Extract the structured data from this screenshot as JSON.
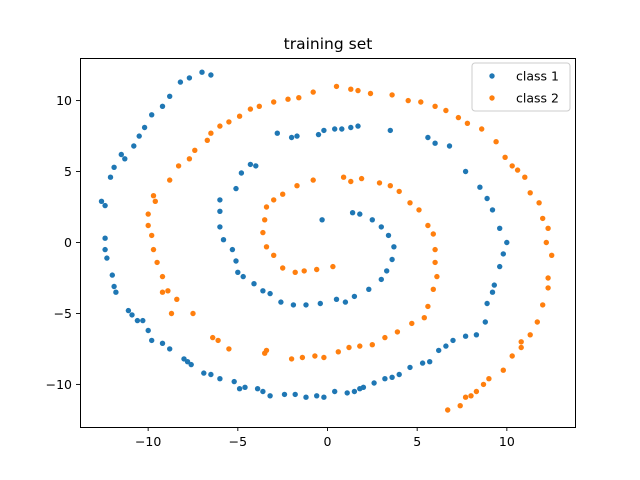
{
  "chart_data": {
    "type": "scatter",
    "title": "training set",
    "xlabel": "",
    "ylabel": "",
    "xlim": [
      -13.8,
      13.8
    ],
    "ylim": [
      -13,
      13
    ],
    "x_ticks": [
      -10,
      -5,
      0,
      5,
      10
    ],
    "y_ticks": [
      -10,
      -5,
      0,
      5,
      10
    ],
    "x_tick_labels": [
      "−10",
      "−5",
      "0",
      "5",
      "10"
    ],
    "y_tick_labels": [
      "−10",
      "−5",
      "0",
      "5",
      "10"
    ],
    "grid": false,
    "legend_position": "top-right",
    "series": [
      {
        "name": "class 1",
        "color": "#1f77b4",
        "points": [
          [
            -0.3,
            1.6
          ],
          [
            1.4,
            2.1
          ],
          [
            1.8,
            2.0
          ],
          [
            2.5,
            1.6
          ],
          [
            3.0,
            1.1
          ],
          [
            3.4,
            0.5
          ],
          [
            3.7,
            -0.3
          ],
          [
            3.6,
            -1.2
          ],
          [
            3.3,
            -2.0
          ],
          [
            3.0,
            -2.6
          ],
          [
            2.3,
            -3.3
          ],
          [
            1.5,
            -3.8
          ],
          [
            1.0,
            -4.2
          ],
          [
            0.5,
            -4.0
          ],
          [
            -0.4,
            -4.3
          ],
          [
            -1.2,
            -4.4
          ],
          [
            -1.9,
            -4.4
          ],
          [
            -2.6,
            -4.2
          ],
          [
            -3.2,
            -3.6
          ],
          [
            -3.6,
            -3.4
          ],
          [
            -4.1,
            -2.9
          ],
          [
            -4.7,
            -2.4
          ],
          [
            -5.0,
            -2.1
          ],
          [
            -5.1,
            -1.3
          ],
          [
            -5.3,
            -0.5
          ],
          [
            -5.8,
            0.2
          ],
          [
            -6.0,
            1.1
          ],
          [
            -6.0,
            2.2
          ],
          [
            -6.0,
            3.0
          ],
          [
            -5.1,
            3.8
          ],
          [
            -4.8,
            4.9
          ],
          [
            -4.3,
            5.5
          ],
          [
            -4.0,
            5.4
          ],
          [
            -2.8,
            7.7
          ],
          [
            -2.0,
            7.4
          ],
          [
            -1.7,
            7.5
          ],
          [
            -0.5,
            7.6
          ],
          [
            -0.2,
            7.9
          ],
          [
            0.4,
            8.0
          ],
          [
            0.8,
            8.0
          ],
          [
            1.3,
            8.1
          ],
          [
            1.7,
            8.2
          ],
          [
            3.5,
            7.9
          ],
          [
            5.6,
            7.4
          ],
          [
            6.0,
            7.0
          ],
          [
            6.8,
            6.8
          ],
          [
            7.7,
            5.0
          ],
          [
            8.5,
            3.9
          ],
          [
            8.9,
            3.1
          ],
          [
            9.2,
            2.3
          ],
          [
            9.6,
            1.0
          ],
          [
            10.0,
            0.0
          ],
          [
            9.8,
            -0.8
          ],
          [
            9.6,
            -1.7
          ],
          [
            9.3,
            -3.0
          ],
          [
            9.2,
            -3.5
          ],
          [
            8.9,
            -4.3
          ],
          [
            8.8,
            -5.6
          ],
          [
            8.3,
            -6.5
          ],
          [
            7.7,
            -6.6
          ],
          [
            7.0,
            -6.9
          ],
          [
            6.6,
            -7.3
          ],
          [
            6.2,
            -7.6
          ],
          [
            5.7,
            -8.4
          ],
          [
            5.3,
            -8.5
          ],
          [
            4.6,
            -8.8
          ],
          [
            4.0,
            -9.3
          ],
          [
            3.6,
            -9.5
          ],
          [
            3.2,
            -9.6
          ],
          [
            2.6,
            -9.9
          ],
          [
            2.0,
            -10.2
          ],
          [
            1.8,
            -10.3
          ],
          [
            1.5,
            -10.5
          ],
          [
            1.1,
            -10.6
          ],
          [
            0.4,
            -10.5
          ],
          [
            -0.2,
            -10.9
          ],
          [
            -0.6,
            -10.8
          ],
          [
            -1.2,
            -10.9
          ],
          [
            -1.8,
            -10.7
          ],
          [
            -2.4,
            -10.7
          ],
          [
            -3.2,
            -10.8
          ],
          [
            -3.6,
            -10.5
          ],
          [
            -3.9,
            -10.3
          ],
          [
            -4.6,
            -10.2
          ],
          [
            -4.9,
            -10.3
          ],
          [
            -5.2,
            -9.8
          ],
          [
            -6.0,
            -9.6
          ],
          [
            -6.5,
            -9.3
          ],
          [
            -6.9,
            -9.2
          ],
          [
            -7.6,
            -8.6
          ],
          [
            -7.8,
            -8.4
          ],
          [
            -8.0,
            -8.2
          ],
          [
            -8.8,
            -7.5
          ],
          [
            -9.2,
            -7.1
          ],
          [
            -9.8,
            -6.9
          ],
          [
            -10.0,
            -6.2
          ],
          [
            -10.3,
            -5.5
          ],
          [
            -10.6,
            -5.5
          ],
          [
            -10.9,
            -5.1
          ],
          [
            -11.1,
            -4.8
          ],
          [
            -11.8,
            -3.5
          ],
          [
            -11.9,
            -3.1
          ],
          [
            -12.0,
            -2.3
          ],
          [
            -12.3,
            -1.1
          ],
          [
            -12.4,
            -0.5
          ],
          [
            -12.4,
            0.3
          ],
          [
            -12.4,
            2.6
          ],
          [
            -12.6,
            2.9
          ],
          [
            -12.1,
            4.6
          ],
          [
            -11.9,
            5.3
          ],
          [
            -11.5,
            6.2
          ],
          [
            -11.3,
            5.9
          ],
          [
            -10.8,
            6.8
          ],
          [
            -10.5,
            7.5
          ],
          [
            -10.2,
            8.1
          ],
          [
            -9.8,
            9.0
          ],
          [
            -9.2,
            9.6
          ],
          [
            -8.8,
            10.3
          ],
          [
            -8.2,
            11.3
          ],
          [
            -7.7,
            11.6
          ],
          [
            -7.0,
            12.0
          ],
          [
            -6.5,
            11.8
          ]
        ]
      },
      {
        "name": "class 2",
        "color": "#ff7f0e",
        "points": [
          [
            0.3,
            -1.7
          ],
          [
            -0.6,
            -1.9
          ],
          [
            -1.3,
            -2.0
          ],
          [
            -1.8,
            -2.1
          ],
          [
            -2.5,
            -1.8
          ],
          [
            -3.0,
            -0.9
          ],
          [
            -3.4,
            -0.3
          ],
          [
            -3.6,
            0.7
          ],
          [
            -3.5,
            1.6
          ],
          [
            -3.4,
            2.5
          ],
          [
            -3.0,
            3.0
          ],
          [
            -2.5,
            3.4
          ],
          [
            -1.7,
            4.0
          ],
          [
            -0.8,
            4.4
          ],
          [
            0.9,
            4.6
          ],
          [
            1.3,
            4.3
          ],
          [
            1.9,
            4.5
          ],
          [
            2.9,
            4.2
          ],
          [
            3.5,
            4.0
          ],
          [
            4.0,
            3.6
          ],
          [
            4.6,
            2.8
          ],
          [
            5.1,
            2.3
          ],
          [
            5.6,
            1.2
          ],
          [
            5.9,
            0.6
          ],
          [
            6.0,
            -0.5
          ],
          [
            6.0,
            -1.4
          ],
          [
            6.1,
            -2.4
          ],
          [
            5.9,
            -3.3
          ],
          [
            5.6,
            -4.5
          ],
          [
            5.4,
            -5.3
          ],
          [
            4.7,
            -5.7
          ],
          [
            3.9,
            -6.3
          ],
          [
            3.2,
            -6.7
          ],
          [
            2.5,
            -7.2
          ],
          [
            1.8,
            -7.3
          ],
          [
            1.2,
            -7.4
          ],
          [
            0.6,
            -7.7
          ],
          [
            -0.2,
            -8.1
          ],
          [
            -0.7,
            -8.0
          ],
          [
            -1.4,
            -8.1
          ],
          [
            -2.0,
            -8.2
          ],
          [
            -3.4,
            -7.6
          ],
          [
            -3.5,
            -7.8
          ],
          [
            -5.5,
            -7.5
          ],
          [
            -6.1,
            -6.9
          ],
          [
            -6.4,
            -6.7
          ],
          [
            -7.5,
            -5.0
          ],
          [
            -8.4,
            -4.0
          ],
          [
            -8.9,
            -3.4
          ],
          [
            -9.2,
            -2.4
          ],
          [
            -9.5,
            -1.4
          ],
          [
            -9.7,
            -0.5
          ],
          [
            -9.8,
            0.5
          ],
          [
            -10.0,
            1.2
          ],
          [
            -10.0,
            2.0
          ],
          [
            -9.6,
            2.9
          ],
          [
            -9.7,
            3.3
          ],
          [
            -8.8,
            4.4
          ],
          [
            -8.3,
            5.4
          ],
          [
            -7.7,
            5.9
          ],
          [
            -7.4,
            6.5
          ],
          [
            -6.7,
            7.2
          ],
          [
            -6.5,
            7.7
          ],
          [
            -6.0,
            8.2
          ],
          [
            -5.5,
            8.5
          ],
          [
            -4.9,
            8.9
          ],
          [
            -4.3,
            9.4
          ],
          [
            -3.8,
            9.6
          ],
          [
            -3.0,
            9.9
          ],
          [
            -2.2,
            10.1
          ],
          [
            -1.6,
            10.2
          ],
          [
            -0.8,
            10.6
          ],
          [
            0.5,
            11.0
          ],
          [
            1.3,
            10.8
          ],
          [
            1.7,
            10.7
          ],
          [
            2.4,
            10.5
          ],
          [
            3.6,
            10.4
          ],
          [
            4.5,
            10.0
          ],
          [
            5.2,
            9.9
          ],
          [
            6.0,
            9.6
          ],
          [
            6.6,
            9.3
          ],
          [
            7.3,
            8.8
          ],
          [
            7.8,
            8.4
          ],
          [
            8.6,
            8.0
          ],
          [
            9.4,
            7.1
          ],
          [
            9.9,
            6.0
          ],
          [
            10.3,
            5.4
          ],
          [
            10.6,
            5.1
          ],
          [
            11.0,
            4.6
          ],
          [
            11.3,
            3.5
          ],
          [
            11.8,
            2.8
          ],
          [
            12.0,
            1.7
          ],
          [
            12.3,
            1.0
          ],
          [
            12.2,
            0.0
          ],
          [
            12.5,
            -0.9
          ],
          [
            12.3,
            -2.5
          ],
          [
            12.3,
            -3.2
          ],
          [
            12.0,
            -4.4
          ],
          [
            11.7,
            -5.6
          ],
          [
            11.3,
            -6.5
          ],
          [
            10.8,
            -7.4
          ],
          [
            10.3,
            -8.0
          ],
          [
            9.8,
            -9.0
          ],
          [
            9.0,
            -9.6
          ],
          [
            8.7,
            -10.0
          ],
          [
            8.3,
            -10.5
          ],
          [
            7.7,
            -10.9
          ],
          [
            7.4,
            -11.5
          ],
          [
            6.7,
            -11.8
          ],
          [
            8.0,
            -10.8
          ],
          [
            10.8,
            -7.0
          ],
          [
            -8.7,
            -5.0
          ],
          [
            -9.2,
            -3.5
          ]
        ]
      }
    ]
  }
}
